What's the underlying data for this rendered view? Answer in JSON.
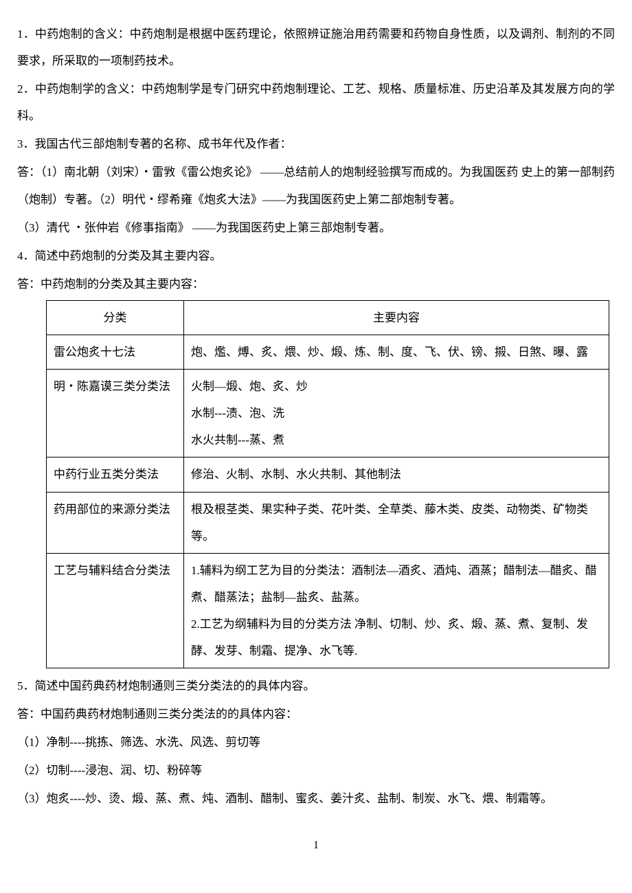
{
  "paragraphs": {
    "q1": "1．中药炮制的含义：中药炮制是根据中医药理论，依照辨证施治用药需要和药物自身性质，以及调剂、制剂的不同要求，所采取的一项制药技术。",
    "q2": "2．中药炮制学的含义：中药炮制学是专门研究中药炮制理论、工艺、规格、质量标准、历史沿革及其发展方向的学科。",
    "q3": "3．我国古代三部炮制专著的名称、成书年代及作者：",
    "a3_1": "答：（1）南北朝（刘宋）・雷敩《雷公炮炙论》 ——总结前人的炮制经验撰写而成的。为我国医药 史上的第一部制药（炮制）专著。（2）明代・缪希雍《炮炙大法》——为我国医药史上第二部炮制专著。",
    "a3_2": "（3）清代 ・张仲岩《修事指南》 ——为我国医药史上第三部炮制专著。",
    "q4": "4．简述中药炮制的分类及其主要内容。",
    "a4": "答：中药炮制的分类及其主要内容：",
    "q5": "5．简述中国药典药材炮制通则三类分类法的的具体内容。",
    "a5": "答：中国药典药材炮制通则三类分类法的的具体内容：",
    "a5_1": "（1）净制----挑拣、筛选、水洗、风选、剪切等",
    "a5_2": "（2）切制----浸泡、润、切、粉碎等",
    "a5_3": "（3）炮炙----炒、烫、煅、蒸、煮、炖、酒制、醋制、蜜炙、姜汁炙、盐制、制炭、水飞、煨、制霜等。"
  },
  "table": {
    "header": {
      "col1": "分类",
      "col2": "主要内容"
    },
    "rows": [
      {
        "col1": "雷公炮炙十七法",
        "col2": "炮、爁、煿、炙、煨、炒、煅、炼、制、度、飞、伏、镑、摋、日煞、曝、露"
      },
      {
        "col1": "明・陈嘉谟三类分类法",
        "col2_line1": "火制—煅、炮、炙、炒",
        "col2_line2": "水制---渍、泡、洗",
        "col2_line3": "水火共制---蒸、煮"
      },
      {
        "col1": "中药行业五类分类法",
        "col2": "修治、火制、水制、水火共制、其他制法"
      },
      {
        "col1": "药用部位的来源分类法",
        "col2": "根及根茎类、果实种子类、花叶类、全草类、藤木类、皮类、动物类、矿物类等。"
      },
      {
        "col1": "工艺与辅料结合分类法",
        "col2_line1": "1.辅料为纲工艺为目的分类法：酒制法—酒炙、酒炖、酒蒸；醋制法—醋炙、醋煮、醋蒸法；盐制—盐炙、盐蒸。",
        "col2_line2": "2.工艺为纲辅料为目的分类方法 净制、切制、炒、炙、煅、蒸、煮、复制、发酵、发芽、制霜、提净、水飞等."
      }
    ]
  },
  "pageNumber": "1"
}
